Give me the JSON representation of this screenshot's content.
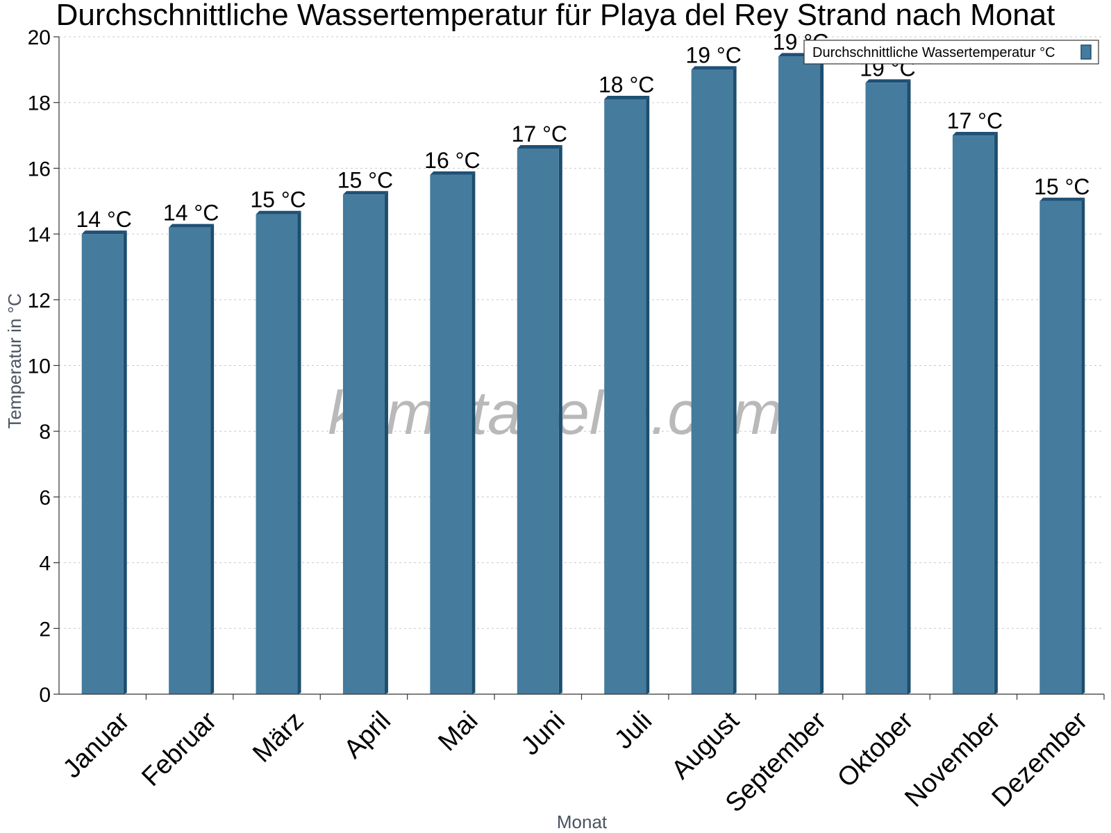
{
  "chart_data": {
    "type": "bar",
    "title": "Durchschnittliche Wassertemperatur für Playa del Rey Strand nach Monat",
    "xlabel": "Monat",
    "ylabel": "Temperatur in °C",
    "categories": [
      "Januar",
      "Februar",
      "März",
      "April",
      "Mai",
      "Juni",
      "Juli",
      "August",
      "September",
      "Oktober",
      "November",
      "Dezember"
    ],
    "series": [
      {
        "name": "Durchschnittliche Wassertemperatur °C",
        "values": [
          14.0,
          14.2,
          14.6,
          15.2,
          15.8,
          16.6,
          18.1,
          19.0,
          19.4,
          18.6,
          17.0,
          15.0
        ],
        "labels": [
          "14 °C",
          "14 °C",
          "15 °C",
          "15 °C",
          "16 °C",
          "17 °C",
          "18 °C",
          "19 °C",
          "19 °C",
          "19 °C",
          "17 °C",
          "15 °C"
        ]
      }
    ],
    "ylim": [
      0,
      20
    ],
    "yticks": [
      0,
      2,
      4,
      6,
      8,
      10,
      12,
      14,
      16,
      18,
      20
    ],
    "grid": true,
    "legend_position": "top-right",
    "colors": {
      "bar": "#457b9d",
      "bar_side": "#1d4e6e",
      "bar_top": "#1f5075"
    }
  },
  "watermark": "klimatabelle.com"
}
